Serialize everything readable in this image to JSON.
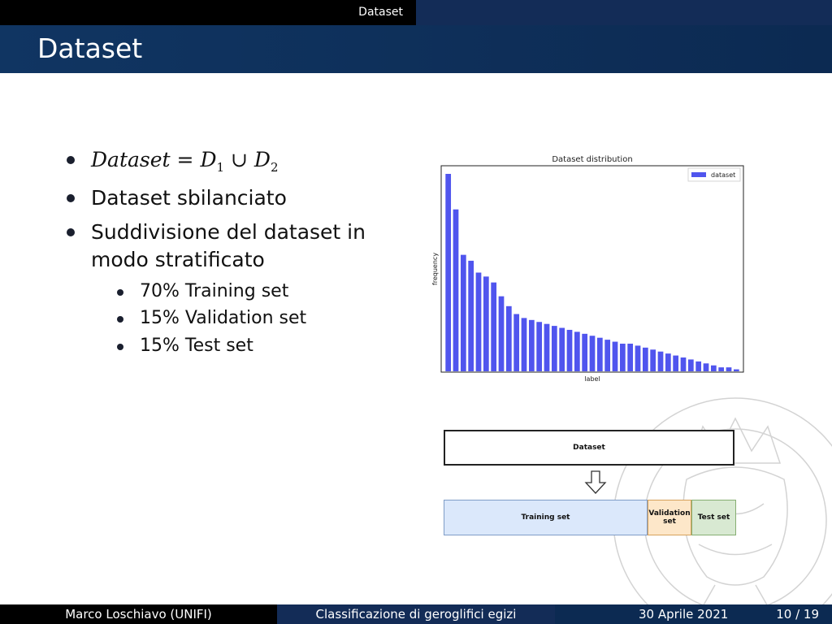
{
  "nav": {
    "section": "Dataset"
  },
  "title": "Dataset",
  "bullets": {
    "b1": {
      "dataset": "Dataset",
      "eq": "=",
      "d1": "D",
      "d1_sub": "1",
      "union": "∪",
      "d2": "D",
      "d2_sub": "2"
    },
    "b2": "Dataset sbilanciato",
    "b3_line1": "Suddivisione del dataset in",
    "b3_line2": "modo stratificato",
    "sub": [
      "70% Training set",
      "15% Validation set",
      "15% Test set"
    ]
  },
  "chart_data": {
    "type": "bar",
    "title": "Dataset distribution",
    "xlabel": "label",
    "ylabel": "frequency",
    "legend": {
      "label": "dataset",
      "placement": "top-right"
    },
    "color": "#5055ee",
    "values": [
      100,
      82,
      59,
      56,
      50,
      48,
      45,
      38,
      33,
      29,
      27,
      26,
      25,
      24,
      23,
      22,
      21,
      20,
      19,
      18,
      17,
      16,
      15,
      14,
      14,
      13,
      12,
      11,
      10,
      9,
      8,
      7,
      6,
      5,
      4,
      3,
      2,
      2,
      1
    ]
  },
  "diagram": {
    "dataset": "Dataset",
    "training": "Training set",
    "validation": "Validation set",
    "test": "Test set"
  },
  "footer": {
    "author": "Marco Loschiavo  (UNIFI)",
    "talk": "Classificazione di geroglifici egizi",
    "date": "30 Aprile 2021",
    "page": "10 / 19"
  }
}
